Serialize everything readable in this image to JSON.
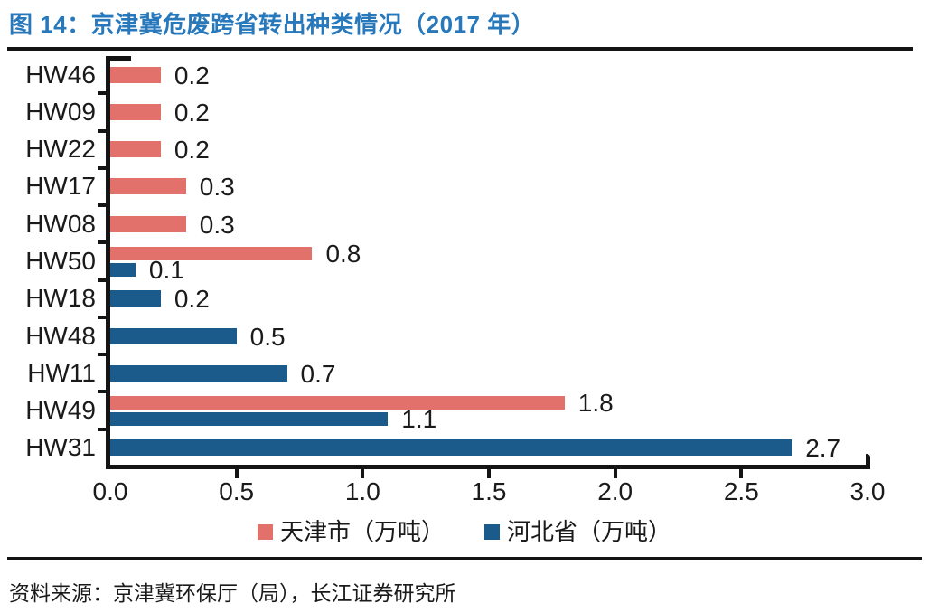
{
  "title": "图 14：京津冀危废跨省转出种类情况（2017 年）",
  "source_note": "资料来源：京津冀环保厅（局），长江证券研究所",
  "colors": {
    "title_blue": "#2878BC",
    "tianjin_pink": "#E2706B",
    "hebei_blue": "#1A5B8C",
    "axis_black": "#141414"
  },
  "chart_data": {
    "type": "bar",
    "orientation": "horizontal",
    "title": "京津冀危废跨省转出种类情况（2017 年）",
    "categories": [
      "HW46",
      "HW09",
      "HW22",
      "HW17",
      "HW08",
      "HW50",
      "HW18",
      "HW48",
      "HW11",
      "HW49",
      "HW31"
    ],
    "series": [
      {
        "name": "天津市（万吨）",
        "color": "#E2706B",
        "values": [
          0.2,
          0.2,
          0.2,
          0.3,
          0.3,
          0.8,
          null,
          null,
          null,
          1.8,
          null
        ]
      },
      {
        "name": "河北省（万吨）",
        "color": "#1A5B8C",
        "values": [
          null,
          null,
          null,
          null,
          null,
          0.1,
          0.2,
          0.5,
          0.7,
          1.1,
          2.7
        ]
      }
    ],
    "xlim": [
      0,
      3
    ],
    "xticks": [
      0.0,
      0.5,
      1.0,
      1.5,
      2.0,
      2.5,
      3.0
    ],
    "xtick_labels": [
      "0.0",
      "0.5",
      "1.0",
      "1.5",
      "2.0",
      "2.5",
      "3.0"
    ],
    "unit": "万吨",
    "value_labels": true,
    "legend_position": "bottom",
    "grid": false
  }
}
